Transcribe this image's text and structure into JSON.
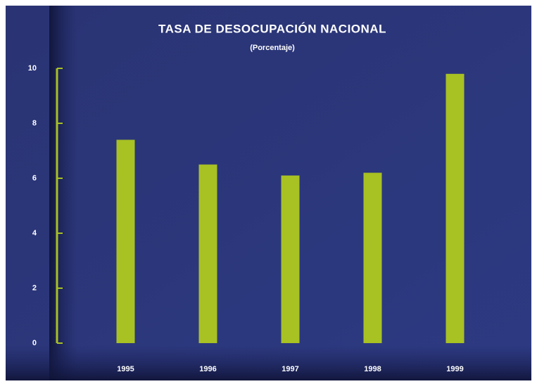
{
  "chart_data": {
    "type": "bar",
    "title": "TASA DE DESOCUPACIÓN NACIONAL",
    "subtitle": "(Porcentaje)",
    "categories": [
      "1995",
      "1996",
      "1997",
      "1998",
      "1999"
    ],
    "values": [
      7.4,
      6.5,
      6.1,
      6.2,
      9.8
    ],
    "color": "#a8c123",
    "ylim": [
      0,
      10
    ],
    "yticks": [
      0,
      2,
      4,
      6,
      8,
      10
    ],
    "grid": false
  }
}
